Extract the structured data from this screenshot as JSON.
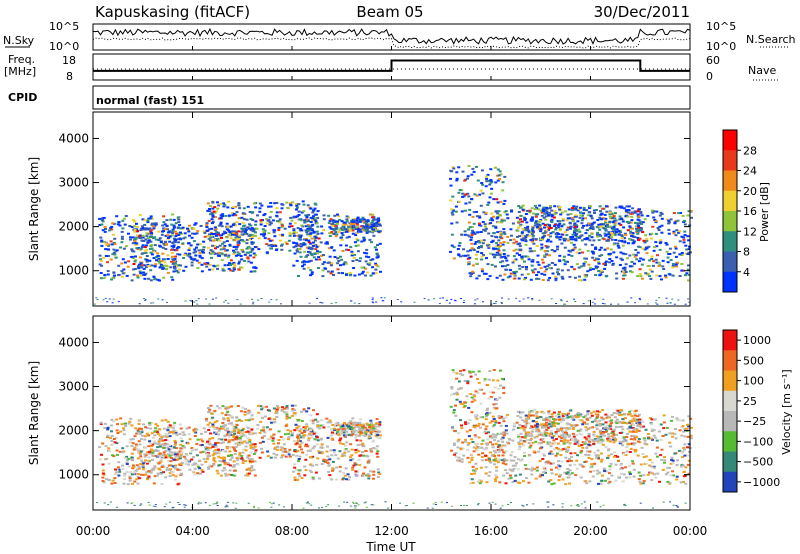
{
  "header": {
    "station": "Kapuskasing (fitACF)",
    "beam": "Beam 05",
    "date": "30/Dec/2011"
  },
  "chart_data": [
    {
      "type": "line",
      "panel": "noise",
      "left_label": "N.Sky",
      "right_label": "N.Search",
      "yticks_left": [
        "10^5",
        "10^0"
      ],
      "yticks_right": [
        "10^5",
        "10^0"
      ],
      "note": ""
    },
    {
      "type": "line",
      "panel": "frequency",
      "left_label_1": "Freq.",
      "left_label_2": "[MHz]",
      "right_label": "Nave",
      "yticks_left": [
        "18",
        "8"
      ],
      "yticks_right": [
        "60",
        "0"
      ],
      "series": [
        {
          "name": "Freq.",
          "x": [
            0,
            12,
            12,
            22,
            22,
            24
          ],
          "y": [
            11.5,
            11.5,
            15.5,
            15.5,
            11.5,
            11.5
          ]
        }
      ]
    },
    {
      "type": "heatmap",
      "panel": "power",
      "ylabel": "Slant Range [km]",
      "yticks": [
        "1000",
        "2000",
        "3000",
        "4000"
      ],
      "ylim": [
        200,
        4600
      ],
      "colorbar_label": "Power [dB]",
      "colorbar_ticks": [
        "4",
        "8",
        "12",
        "16",
        "20",
        "24",
        "28"
      ],
      "colors": [
        "#0033ff",
        "#3a5fb0",
        "#2f8f7f",
        "#8fc43a",
        "#f0d030",
        "#f08a1a",
        "#e83a1a",
        "#ff0000"
      ]
    },
    {
      "type": "heatmap",
      "panel": "velocity",
      "ylabel": "Slant Range [km]",
      "yticks": [
        "1000",
        "2000",
        "3000",
        "4000"
      ],
      "ylim": [
        200,
        4600
      ],
      "colorbar_label": "Velocity [m s⁻¹]",
      "colorbar_ticks": [
        "1000",
        "500",
        "100",
        "25",
        "−25",
        "−100",
        "−500",
        "−1000"
      ],
      "colors": [
        "#2244bb",
        "#338877",
        "#55bb33",
        "#b8b8b8",
        "#d8d8d0",
        "#f0a020",
        "#ee6622",
        "#ee1111"
      ]
    }
  ],
  "cpid": {
    "label": "CPID",
    "mode": "normal (fast) 151"
  },
  "xaxis": {
    "ticks": [
      "00:00",
      "04:00",
      "08:00",
      "12:00",
      "16:00",
      "20:00",
      "00:00"
    ],
    "label": "Time UT"
  }
}
